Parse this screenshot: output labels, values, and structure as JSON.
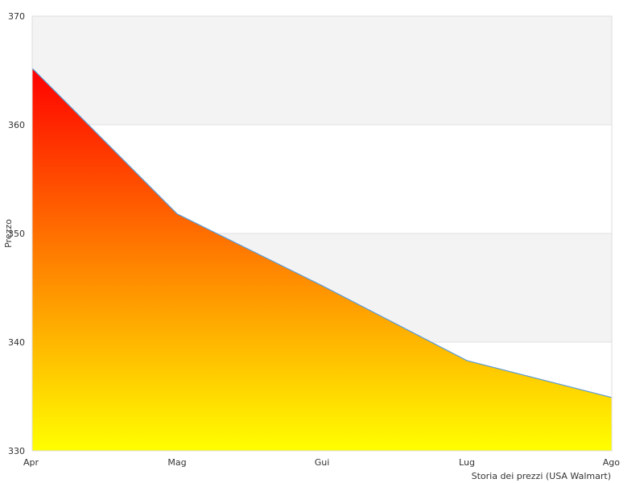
{
  "chart_data": {
    "type": "area",
    "categories": [
      "Apr",
      "Mag",
      "Gui",
      "Lug",
      "Ago"
    ],
    "values": [
      365.2,
      351.8,
      345.2,
      338.3,
      334.9
    ],
    "ylabel": "Prezzo",
    "xlabel": "Storia dei prezzi (USA Walmart)",
    "ylim": [
      330,
      370
    ],
    "yticks": [
      330,
      340,
      350,
      360,
      370
    ],
    "grid": true,
    "band_colors": [
      "#ffffff",
      "#f3f3f3"
    ],
    "line_color": "#5b9bd5",
    "fill_gradient": [
      "#ff0000",
      "#ff8000",
      "#ffff00"
    ]
  }
}
